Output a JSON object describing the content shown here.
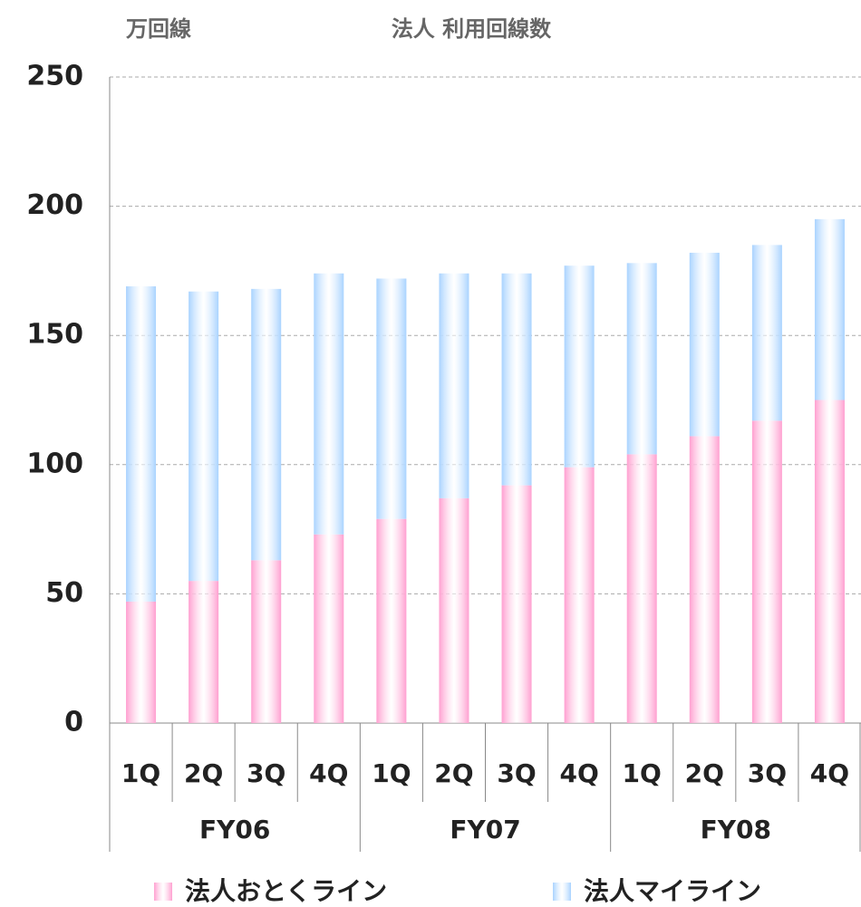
{
  "chart_data": {
    "type": "stacked_bar",
    "title": "法人  利用回線数",
    "y_axis_label": "万回線",
    "categories": [
      "1Q",
      "2Q",
      "3Q",
      "4Q",
      "1Q",
      "2Q",
      "3Q",
      "4Q",
      "1Q",
      "2Q",
      "3Q",
      "4Q"
    ],
    "groups": [
      "FY06",
      "FY07",
      "FY08"
    ],
    "series": [
      {
        "name": "法人おとくライン",
        "color": "#ff9fd0",
        "values": [
          47,
          55,
          63,
          73,
          79,
          87,
          92,
          99,
          104,
          111,
          117,
          125
        ]
      },
      {
        "name": "法人マイライン",
        "color": "#a9d3ff",
        "values": [
          122,
          112,
          105,
          101,
          93,
          87,
          82,
          78,
          74,
          71,
          68,
          70
        ]
      }
    ],
    "ylim": [
      0,
      250
    ],
    "yticks": [
      0,
      50,
      100,
      150,
      200,
      250
    ],
    "grid": true,
    "legend": "bottom"
  }
}
